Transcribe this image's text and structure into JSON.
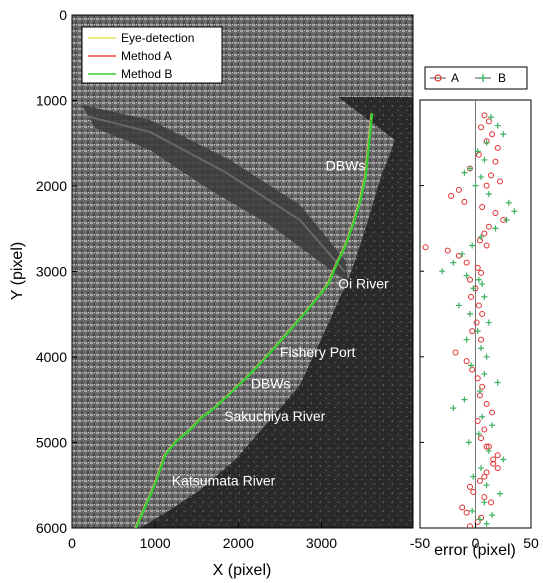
{
  "chart_data": [
    {
      "type": "line",
      "xlabel": "X (pixel)",
      "ylabel": "Y (pixel)",
      "xlim": [
        0,
        4100
      ],
      "ylim": [
        6000,
        0
      ],
      "y_inverted": true,
      "x_ticks": [
        "0",
        "1000",
        "2000",
        "3000"
      ],
      "y_ticks": [
        "0",
        "1000",
        "2000",
        "3000",
        "4000",
        "5000",
        "6000"
      ],
      "legend": {
        "position": "top-left",
        "entries": [
          "Eye-detection",
          "Method A",
          "Method B"
        ]
      },
      "series": [
        {
          "name": "Eye-detection",
          "color": "#ffff80",
          "x": [
            760,
            850,
            940,
            1000,
            1110,
            1230,
            1400,
            1560,
            1700,
            1900,
            2100,
            2280,
            2420,
            2600,
            2780,
            2950,
            3070,
            3180,
            3280,
            3370,
            3450,
            3520,
            3600
          ],
          "y": [
            6000,
            5800,
            5600,
            5460,
            5150,
            5000,
            4860,
            4700,
            4600,
            4420,
            4230,
            4050,
            3900,
            3700,
            3500,
            3300,
            3150,
            2900,
            2700,
            2450,
            2200,
            1900,
            1150
          ]
        },
        {
          "name": "Method A",
          "color": "#ff4040",
          "x": [
            765,
            855,
            945,
            1005,
            1115,
            1235,
            1405,
            1565,
            1705,
            1905,
            2105,
            2285,
            2425,
            2605,
            2785,
            2955,
            3075,
            3185,
            3285,
            3375,
            3455,
            3525,
            3605
          ],
          "y": [
            6000,
            5800,
            5600,
            5460,
            5150,
            5000,
            4860,
            4700,
            4600,
            4420,
            4230,
            4050,
            3900,
            3700,
            3500,
            3300,
            3150,
            2900,
            2700,
            2450,
            2200,
            1900,
            1150
          ]
        },
        {
          "name": "Method B",
          "color": "#30d030",
          "x": [
            770,
            860,
            950,
            1010,
            1120,
            1240,
            1410,
            1570,
            1710,
            1910,
            2110,
            2290,
            2430,
            2610,
            2790,
            2960,
            3080,
            3190,
            3290,
            3380,
            3460,
            3530,
            3610
          ],
          "y": [
            6000,
            5800,
            5600,
            5460,
            5150,
            5000,
            4860,
            4700,
            4600,
            4420,
            4230,
            4050,
            3900,
            3700,
            3500,
            3300,
            3150,
            2900,
            2700,
            2450,
            2200,
            1900,
            1150
          ]
        }
      ],
      "annotations": [
        {
          "text": "DBWs",
          "x": 3050,
          "y": 1820
        },
        {
          "text": "Oi River",
          "x": 3200,
          "y": 3200
        },
        {
          "text": "Fishery Port",
          "x": 2500,
          "y": 4000
        },
        {
          "text": "DBWs",
          "x": 2150,
          "y": 4370
        },
        {
          "text": "Sakuchiya River",
          "x": 1830,
          "y": 4750
        },
        {
          "text": "Katsumata River",
          "x": 1200,
          "y": 5500
        }
      ]
    },
    {
      "type": "scatter",
      "xlabel": "error (pixel)",
      "ylabel": "",
      "xlim": [
        -50,
        50
      ],
      "ylim": [
        6000,
        1000
      ],
      "y_inverted": true,
      "x_ticks": [
        "-50",
        "0",
        "50"
      ],
      "legend": {
        "position": "top",
        "entries": [
          "A",
          "B"
        ]
      },
      "series": [
        {
          "name": "A",
          "marker": "circle",
          "color": "#e03030",
          "x": [
            8,
            12,
            5,
            15,
            10,
            20,
            3,
            18,
            -5,
            14,
            22,
            10,
            -15,
            -22,
            -10,
            6,
            18,
            25,
            12,
            8,
            4,
            10,
            -45,
            -25,
            -15,
            -8,
            2,
            5,
            -5,
            0,
            -4,
            3,
            6,
            1,
            -3,
            5,
            -18,
            -8,
            -3,
            2,
            6,
            4,
            10,
            15,
            2,
            8,
            5,
            12,
            20,
            16,
            10,
            4,
            -5,
            -2,
            8,
            14,
            -12,
            -8,
            5,
            2,
            -5,
            10,
            16,
            20,
            8
          ],
          "y": [
            1180,
            1250,
            1320,
            1400,
            1480,
            1560,
            1640,
            1720,
            1800,
            1880,
            1950,
            2000,
            2050,
            2120,
            2190,
            2250,
            2320,
            2400,
            2480,
            2560,
            2640,
            2700,
            2720,
            2760,
            2820,
            2900,
            2960,
            3020,
            3100,
            3200,
            3300,
            3400,
            3500,
            3600,
            3700,
            3800,
            3950,
            4050,
            4150,
            4250,
            4350,
            4450,
            4550,
            4650,
            4750,
            4850,
            4950,
            5050,
            5150,
            5250,
            5350,
            5450,
            5520,
            5580,
            5640,
            5700,
            5760,
            5820,
            5880,
            5930,
            5980,
            5050,
            5200,
            5300,
            5400
          ]
        },
        {
          "name": "B",
          "marker": "plus",
          "color": "#40b060",
          "x": [
            14,
            20,
            25,
            10,
            2,
            8,
            -5,
            -10,
            5,
            0,
            12,
            30,
            35,
            28,
            18,
            5,
            -3,
            -12,
            -20,
            -30,
            -8,
            3,
            6,
            -2,
            8,
            -15,
            -5,
            12,
            2,
            -8,
            5,
            10,
            -4,
            8,
            20,
            4,
            -10,
            -20,
            6,
            15,
            3,
            -6,
            12,
            25,
            5,
            -2,
            10,
            22,
            8,
            -3,
            15,
            4,
            10
          ],
          "y": [
            1200,
            1300,
            1400,
            1500,
            1600,
            1700,
            1800,
            1850,
            1900,
            2000,
            2100,
            2200,
            2300,
            2400,
            2500,
            2600,
            2700,
            2800,
            2900,
            3000,
            3050,
            3100,
            3150,
            3200,
            3300,
            3400,
            3500,
            3600,
            3700,
            3800,
            3900,
            4000,
            4100,
            4200,
            4300,
            4400,
            4500,
            4600,
            4700,
            4800,
            4900,
            5000,
            5100,
            5200,
            5300,
            5400,
            5500,
            5600,
            5700,
            5800,
            5850,
            5900,
            5950
          ]
        }
      ]
    }
  ]
}
